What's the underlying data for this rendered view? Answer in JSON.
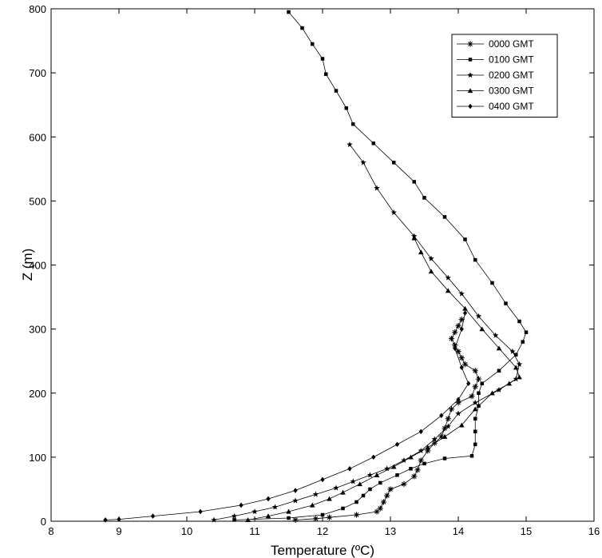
{
  "chart_data": {
    "type": "line",
    "title": "",
    "xlabel": "Temperature (ºC)",
    "ylabel": "Z (m)",
    "xlim": [
      8,
      16
    ],
    "ylim": [
      0,
      800
    ],
    "xticks": [
      8,
      9,
      10,
      11,
      12,
      13,
      14,
      15,
      16
    ],
    "yticks": [
      0,
      100,
      200,
      300,
      400,
      500,
      600,
      700,
      800
    ],
    "grid": false,
    "legend_position": "top-right",
    "series": [
      {
        "name": "0000 GMT",
        "marker": "asterisk",
        "points": [
          [
            11.6,
            2
          ],
          [
            11.9,
            4
          ],
          [
            12.1,
            6
          ],
          [
            12.5,
            10
          ],
          [
            12.8,
            15
          ],
          [
            12.85,
            20
          ],
          [
            12.9,
            30
          ],
          [
            12.95,
            40
          ],
          [
            13.0,
            50
          ],
          [
            13.2,
            58
          ],
          [
            13.35,
            70
          ],
          [
            13.4,
            80
          ],
          [
            13.45,
            95
          ],
          [
            13.55,
            110
          ],
          [
            13.65,
            122
          ],
          [
            13.75,
            132
          ],
          [
            13.8,
            145
          ],
          [
            13.85,
            160
          ],
          [
            13.9,
            175
          ],
          [
            14.0,
            185
          ],
          [
            14.2,
            195
          ],
          [
            14.25,
            210
          ],
          [
            14.3,
            222
          ],
          [
            14.25,
            235
          ],
          [
            14.1,
            245
          ],
          [
            14.05,
            255
          ],
          [
            14.0,
            265
          ],
          [
            13.95,
            275
          ],
          [
            13.9,
            285
          ],
          [
            13.95,
            295
          ],
          [
            14.0,
            305
          ],
          [
            14.05,
            315
          ]
        ]
      },
      {
        "name": "0100 GMT",
        "marker": "square",
        "points": [
          [
            10.7,
            2
          ],
          [
            11.5,
            5
          ],
          [
            12.0,
            10
          ],
          [
            12.3,
            20
          ],
          [
            12.5,
            30
          ],
          [
            12.6,
            40
          ],
          [
            12.7,
            50
          ],
          [
            12.85,
            60
          ],
          [
            13.1,
            72
          ],
          [
            13.3,
            82
          ],
          [
            13.5,
            90
          ],
          [
            13.8,
            98
          ],
          [
            14.2,
            102
          ],
          [
            14.25,
            120
          ],
          [
            14.25,
            140
          ],
          [
            14.25,
            160
          ],
          [
            14.3,
            180
          ],
          [
            14.3,
            200
          ],
          [
            14.35,
            215
          ],
          [
            14.6,
            235
          ],
          [
            14.85,
            260
          ],
          [
            14.95,
            280
          ],
          [
            15.0,
            295
          ],
          [
            14.9,
            312
          ],
          [
            14.7,
            340
          ],
          [
            14.5,
            372
          ],
          [
            14.25,
            408
          ],
          [
            14.1,
            440
          ],
          [
            13.8,
            475
          ],
          [
            13.5,
            505
          ],
          [
            13.35,
            530
          ],
          [
            13.05,
            560
          ],
          [
            12.75,
            590
          ],
          [
            12.45,
            620
          ],
          [
            12.35,
            645
          ],
          [
            12.2,
            672
          ],
          [
            12.05,
            698
          ],
          [
            12.0,
            722
          ],
          [
            11.85,
            745
          ],
          [
            11.7,
            770
          ],
          [
            11.5,
            795
          ]
        ]
      },
      {
        "name": "0200 GMT",
        "marker": "star",
        "points": [
          [
            10.4,
            2
          ],
          [
            10.7,
            8
          ],
          [
            11.0,
            15
          ],
          [
            11.3,
            22
          ],
          [
            11.6,
            32
          ],
          [
            11.9,
            42
          ],
          [
            12.2,
            52
          ],
          [
            12.45,
            62
          ],
          [
            12.7,
            72
          ],
          [
            12.95,
            82
          ],
          [
            13.2,
            95
          ],
          [
            13.45,
            110
          ],
          [
            13.65,
            128
          ],
          [
            13.85,
            148
          ],
          [
            14.0,
            168
          ],
          [
            14.25,
            185
          ],
          [
            14.6,
            205
          ],
          [
            14.85,
            222
          ],
          [
            14.9,
            245
          ],
          [
            14.8,
            265
          ],
          [
            14.55,
            290
          ],
          [
            14.3,
            320
          ],
          [
            14.05,
            355
          ],
          [
            13.85,
            380
          ],
          [
            13.6,
            410
          ],
          [
            13.35,
            445
          ],
          [
            13.05,
            482
          ],
          [
            12.8,
            520
          ],
          [
            12.6,
            560
          ],
          [
            12.4,
            588
          ]
        ]
      },
      {
        "name": "0300 GMT",
        "marker": "triangle",
        "points": [
          [
            10.9,
            2
          ],
          [
            11.2,
            8
          ],
          [
            11.5,
            15
          ],
          [
            11.85,
            25
          ],
          [
            12.1,
            35
          ],
          [
            12.3,
            45
          ],
          [
            12.55,
            58
          ],
          [
            12.8,
            72
          ],
          [
            13.05,
            85
          ],
          [
            13.3,
            100
          ],
          [
            13.55,
            115
          ],
          [
            13.8,
            132
          ],
          [
            14.05,
            150
          ],
          [
            14.25,
            175
          ],
          [
            14.5,
            200
          ],
          [
            14.75,
            215
          ],
          [
            14.9,
            225
          ],
          [
            14.85,
            240
          ],
          [
            14.6,
            270
          ],
          [
            14.35,
            300
          ],
          [
            14.1,
            332
          ],
          [
            13.85,
            360
          ],
          [
            13.6,
            390
          ],
          [
            13.45,
            420
          ],
          [
            13.35,
            442
          ]
        ]
      },
      {
        "name": "0400 GMT",
        "marker": "diamond",
        "points": [
          [
            8.8,
            2
          ],
          [
            9.0,
            3
          ],
          [
            9.5,
            8
          ],
          [
            10.2,
            15
          ],
          [
            10.8,
            25
          ],
          [
            11.2,
            35
          ],
          [
            11.6,
            48
          ],
          [
            12.0,
            65
          ],
          [
            12.4,
            82
          ],
          [
            12.75,
            100
          ],
          [
            13.1,
            120
          ],
          [
            13.45,
            140
          ],
          [
            13.75,
            165
          ],
          [
            14.0,
            190
          ],
          [
            14.15,
            215
          ],
          [
            14.05,
            240
          ],
          [
            13.95,
            270
          ],
          [
            14.05,
            300
          ],
          [
            14.1,
            325
          ]
        ]
      }
    ]
  }
}
